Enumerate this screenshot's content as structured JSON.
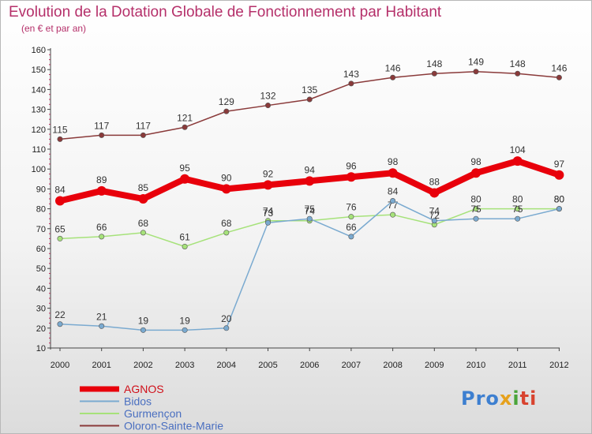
{
  "chart_data": {
    "type": "line",
    "title": "Evolution de la Dotation Globale de Fonctionnement par Habitant",
    "subtitle": "(en € et par an)",
    "xlabel": "",
    "ylabel": "",
    "categories": [
      "2000",
      "2001",
      "2002",
      "2003",
      "2004",
      "2005",
      "2006",
      "2007",
      "2008",
      "2009",
      "2010",
      "2011",
      "2012"
    ],
    "ylim": [
      10,
      160
    ],
    "yticks": [
      10,
      20,
      30,
      40,
      50,
      60,
      70,
      80,
      90,
      100,
      110,
      120,
      130,
      140,
      150,
      160
    ],
    "grid": false,
    "legend_position": "bottom-left",
    "series": [
      {
        "name": "AGNOS",
        "color": "#e8000b",
        "line_width": 8,
        "marker_size": 6,
        "values": [
          84,
          89,
          85,
          95,
          90,
          92,
          94,
          96,
          98,
          88,
          98,
          104,
          97
        ]
      },
      {
        "name": "Bidos",
        "color": "#7aaad0",
        "line_width": 1.5,
        "marker_size": 3.2,
        "values": [
          22,
          21,
          19,
          19,
          20,
          73,
          75,
          66,
          84,
          74,
          75,
          75,
          80
        ]
      },
      {
        "name": "Gurmençon",
        "color": "#a6e27a",
        "line_width": 1.5,
        "marker_size": 3.2,
        "values": [
          65,
          66,
          68,
          61,
          68,
          74,
          74,
          76,
          77,
          72,
          80,
          80,
          80
        ]
      },
      {
        "name": "Oloron-Sainte-Marie",
        "color": "#8a3a3a",
        "line_width": 1.5,
        "marker_size": 3.2,
        "values": [
          115,
          117,
          117,
          121,
          129,
          132,
          135,
          143,
          146,
          148,
          149,
          148,
          146
        ]
      }
    ]
  },
  "logo": {
    "p1": "Pro",
    "p2": "x",
    "p3": "i",
    "p4": "ti"
  }
}
